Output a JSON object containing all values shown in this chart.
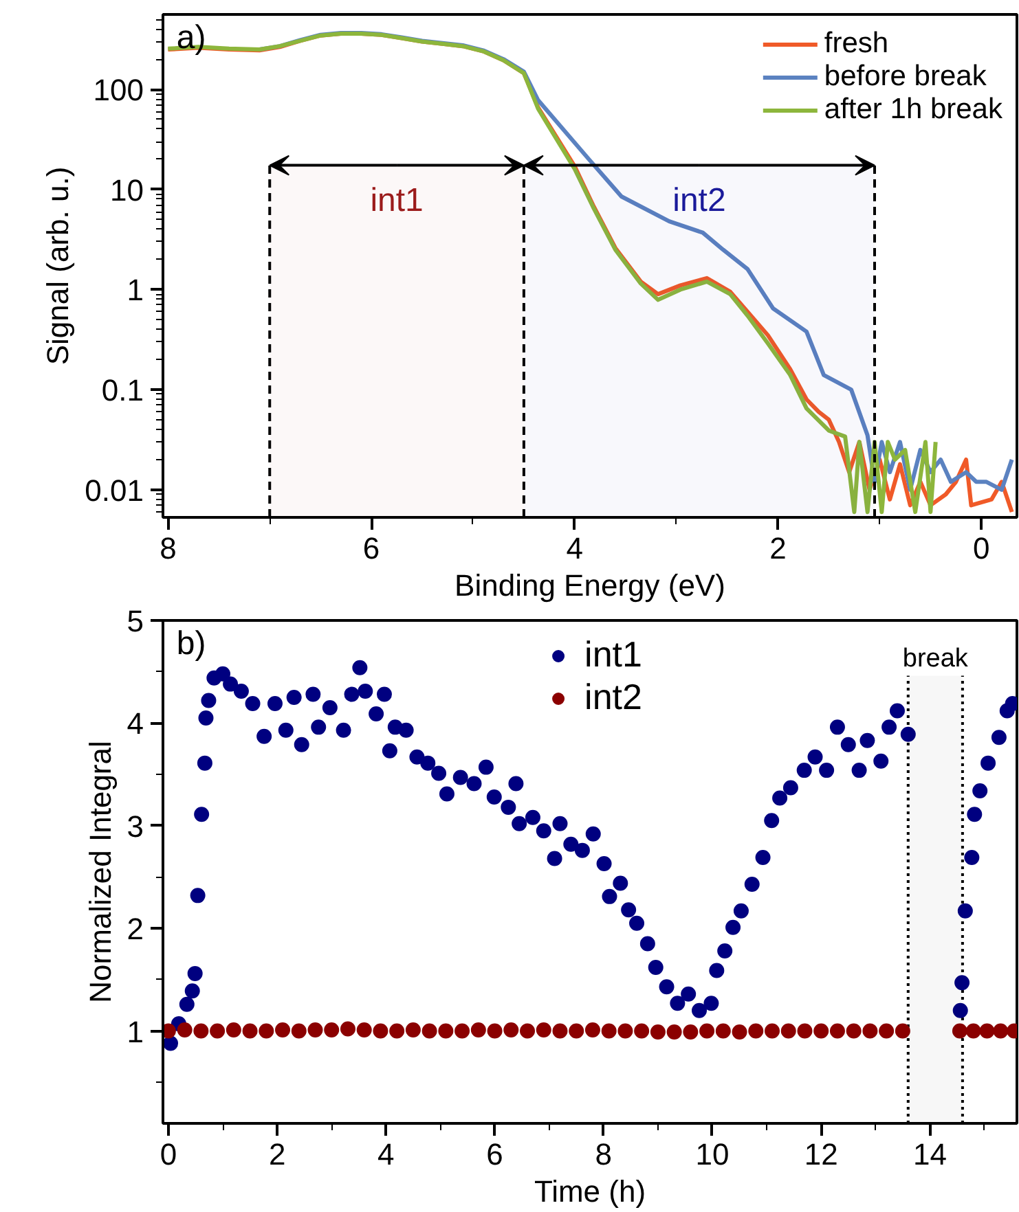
{
  "chart_data": [
    {
      "type": "line",
      "xlabel": "Binding Energy (eV)",
      "ylabel": "Signal (arb. u.)",
      "log": "y",
      "xlim": [
        8.05,
        -0.35
      ],
      "ylim": [
        0.0053,
        560
      ],
      "xticks": [
        8,
        {
          "value": 7,
          "label": null
        },
        6,
        {
          "value": 5,
          "label": null
        },
        4,
        {
          "value": 3,
          "label": null
        },
        2,
        {
          "value": 1,
          "label": null
        },
        0
      ],
      "yticks": [
        0.01,
        0.1,
        1,
        10,
        100
      ],
      "legend": "top right",
      "bands": [
        {
          "axis": "x",
          "from": 7,
          "to": 4.5,
          "label": "int1",
          "color": "#9b1b1b"
        },
        {
          "axis": "x",
          "from": 4.5,
          "to": 1.05,
          "label": "int2",
          "color": "#1a1a9a"
        }
      ],
      "annotations": [
        "a)"
      ],
      "series": [
        {
          "name": "fresh",
          "color": "#f05a28",
          "x": [
            8.0,
            7.7,
            7.4,
            7.1,
            6.9,
            6.7,
            6.5,
            6.3,
            6.1,
            5.9,
            5.7,
            5.5,
            5.3,
            5.1,
            4.9,
            4.7,
            4.5,
            4.36,
            4.0,
            3.82,
            3.6,
            3.35,
            3.18,
            2.96,
            2.7,
            2.47,
            2.3,
            2.1,
            1.88,
            1.72,
            1.6,
            1.5,
            1.4,
            1.3,
            1.2,
            1.1,
            1.0,
            0.9,
            0.8,
            0.7,
            0.6,
            0.5,
            0.35,
            0.25,
            0.15,
            0.1,
            -0.1,
            -0.2,
            -0.3
          ],
          "values": [
            250,
            260,
            250,
            245,
            265,
            305,
            345,
            360,
            360,
            350,
            325,
            300,
            285,
            270,
            240,
            195,
            145,
            66,
            17,
            7,
            2.6,
            1.2,
            0.9,
            1.1,
            1.3,
            0.95,
            0.6,
            0.35,
            0.16,
            0.08,
            0.06,
            0.05,
            0.03,
            0.015,
            0.03,
            0.01,
            0.02,
            0.008,
            0.018,
            0.007,
            0.012,
            0.007,
            0.009,
            0.012,
            0.02,
            0.007,
            0.008,
            0.012,
            0.006
          ]
        },
        {
          "name": "before break",
          "color": "#5b82c0",
          "x": [
            7.1,
            6.9,
            6.7,
            6.5,
            6.3,
            6.1,
            5.9,
            5.7,
            5.5,
            5.3,
            5.1,
            4.9,
            4.7,
            4.5,
            4.36,
            3.86,
            3.54,
            3.07,
            2.74,
            2.54,
            2.3,
            2.05,
            1.72,
            1.55,
            1.28,
            1.12,
            1.05,
            0.98,
            0.9,
            0.8,
            0.7,
            0.6,
            0.5,
            0.4,
            0.3,
            0.15,
            0.05,
            -0.05,
            -0.2,
            -0.3
          ],
          "values": [
            250,
            270,
            310,
            350,
            365,
            365,
            355,
            330,
            305,
            290,
            275,
            245,
            200,
            150,
            78,
            20,
            8.5,
            4.8,
            3.7,
            2.5,
            1.6,
            0.65,
            0.38,
            0.14,
            0.1,
            0.035,
            0.012,
            0.03,
            0.015,
            0.03,
            0.01,
            0.025,
            0.015,
            0.02,
            0.012,
            0.015,
            0.012,
            0.012,
            0.01,
            0.02
          ]
        },
        {
          "name": "after 1h break",
          "color": "#8db63c",
          "x": [
            8.0,
            7.7,
            7.4,
            7.1,
            6.9,
            6.7,
            6.5,
            6.3,
            6.1,
            5.9,
            5.7,
            5.5,
            5.3,
            5.1,
            4.9,
            4.7,
            4.5,
            4.36,
            4.0,
            3.82,
            3.6,
            3.35,
            3.18,
            2.96,
            2.7,
            2.47,
            2.3,
            2.1,
            1.88,
            1.72,
            1.5,
            1.34,
            1.25,
            1.2,
            1.12,
            1.05,
            0.98,
            0.92,
            0.85,
            0.75,
            0.65,
            0.55,
            0.5,
            0.45
          ],
          "values": [
            255,
            265,
            255,
            250,
            270,
            305,
            345,
            360,
            360,
            350,
            325,
            300,
            285,
            270,
            240,
            195,
            145,
            64,
            16,
            6.7,
            2.5,
            1.15,
            0.79,
            1.0,
            1.2,
            0.9,
            0.55,
            0.29,
            0.14,
            0.065,
            0.039,
            0.034,
            0.006,
            0.03,
            0.006,
            0.03,
            0.006,
            0.03,
            0.02,
            0.025,
            0.006,
            0.03,
            0.006,
            0.03
          ]
        }
      ]
    },
    {
      "type": "scatter",
      "xlabel": "Time (h)",
      "ylabel": "Normalized Integral",
      "marker": "circle",
      "xlim": [
        -0.1,
        15.6
      ],
      "ylim": [
        0.1,
        5
      ],
      "xticks": [
        0,
        {
          "value": 1,
          "label": null
        },
        2,
        {
          "value": 3,
          "label": null
        },
        4,
        {
          "value": 5,
          "label": null
        },
        6,
        {
          "value": 7,
          "label": null
        },
        8,
        {
          "value": 9,
          "label": null
        },
        10,
        {
          "value": 11,
          "label": null
        },
        12,
        {
          "value": 13,
          "label": null
        },
        14,
        {
          "value": 15,
          "label": null
        }
      ],
      "yticks": [
        {
          "value": 0.5,
          "label": null
        },
        1,
        {
          "value": 1.5,
          "label": null
        },
        2,
        {
          "value": 2.5,
          "label": null
        },
        3,
        {
          "value": 3.5,
          "label": null
        },
        4,
        {
          "value": 4.5,
          "label": null
        },
        5
      ],
      "legend": "top",
      "ref_lines": [
        {
          "axis": "x",
          "value": 13.6,
          "line_style": "dotted",
          "color": "#000000"
        },
        {
          "axis": "x",
          "value": 14.6,
          "line_style": "dotted",
          "color": "#000000"
        }
      ],
      "bands": [
        {
          "axis": "x",
          "from": 13.6,
          "to": 14.6,
          "label": "break",
          "color": "#000000"
        }
      ],
      "annotations": [
        "b)"
      ],
      "series": [
        {
          "name": "int1",
          "color": "#000080",
          "x": [
            0.04,
            0.19,
            0.34,
            0.44,
            0.49,
            0.54,
            0.61,
            0.67,
            0.69,
            0.74,
            0.84,
            1.0,
            1.14,
            1.34,
            1.55,
            1.76,
            1.96,
            2.16,
            2.31,
            2.45,
            2.66,
            2.76,
            2.97,
            3.22,
            3.37,
            3.52,
            3.62,
            3.82,
            3.97,
            4.07,
            4.17,
            4.37,
            4.57,
            4.77,
            4.97,
            5.12,
            5.37,
            5.62,
            5.84,
            5.99,
            6.25,
            6.39,
            6.45,
            6.7,
            6.9,
            7.1,
            7.2,
            7.4,
            7.61,
            7.81,
            8.01,
            8.11,
            8.31,
            8.46,
            8.61,
            8.81,
            8.96,
            9.16,
            9.36,
            9.56,
            9.76,
            9.98,
            10.08,
            10.23,
            10.38,
            10.53,
            10.73,
            10.93,
            11.09,
            11.24,
            11.44,
            11.69,
            11.89,
            12.1,
            12.3,
            12.5,
            12.7,
            12.85,
            13.1,
            13.25,
            13.4,
            13.6,
            14.56,
            14.59,
            14.65,
            14.77,
            14.82,
            14.92,
            15.07,
            15.27,
            15.42,
            15.52
          ],
          "values": [
            0.88,
            1.07,
            1.26,
            1.39,
            1.56,
            2.32,
            3.11,
            3.61,
            4.05,
            4.22,
            4.44,
            4.48,
            4.38,
            4.31,
            4.19,
            3.87,
            4.19,
            3.93,
            4.25,
            3.79,
            4.28,
            3.96,
            4.15,
            3.93,
            4.28,
            4.54,
            4.31,
            4.09,
            4.28,
            3.73,
            3.96,
            3.93,
            3.67,
            3.61,
            3.51,
            3.31,
            3.47,
            3.41,
            3.57,
            3.28,
            3.18,
            3.41,
            3.02,
            3.08,
            2.95,
            2.68,
            3.02,
            2.82,
            2.76,
            2.92,
            2.63,
            2.31,
            2.44,
            2.18,
            2.05,
            1.85,
            1.62,
            1.43,
            1.27,
            1.36,
            1.2,
            1.27,
            1.59,
            1.78,
            2.01,
            2.17,
            2.43,
            2.69,
            3.05,
            3.27,
            3.37,
            3.54,
            3.67,
            3.54,
            3.96,
            3.79,
            3.54,
            3.83,
            3.63,
            3.96,
            4.12,
            3.89,
            1.2,
            1.47,
            2.17,
            2.69,
            3.11,
            3.34,
            3.61,
            3.86,
            4.12,
            4.19
          ]
        },
        {
          "name": "int2",
          "color": "#8b0000",
          "x": [
            0.0,
            0.3,
            0.6,
            0.9,
            1.2,
            1.5,
            1.8,
            2.1,
            2.4,
            2.7,
            3.0,
            3.3,
            3.6,
            3.9,
            4.2,
            4.5,
            4.8,
            5.1,
            5.4,
            5.7,
            6.0,
            6.3,
            6.6,
            6.9,
            7.2,
            7.5,
            7.8,
            8.1,
            8.4,
            8.7,
            9.0,
            9.3,
            9.6,
            9.9,
            10.2,
            10.5,
            10.8,
            11.1,
            11.4,
            11.7,
            12.0,
            12.3,
            12.6,
            12.9,
            13.2,
            13.5,
            14.55,
            14.8,
            15.05,
            15.3,
            15.55
          ],
          "values": [
            1.0,
            1.01,
            1.0,
            1.0,
            1.01,
            1.0,
            1.0,
            1.01,
            1.0,
            1.01,
            1.01,
            1.02,
            1.01,
            1.0,
            1.0,
            1.01,
            1.0,
            1.0,
            1.0,
            1.01,
            1.0,
            1.01,
            1.0,
            1.01,
            1.0,
            1.0,
            1.01,
            1.0,
            1.0,
            1.0,
            0.99,
            0.99,
            0.99,
            1.0,
            1.0,
            0.99,
            1.0,
            1.0,
            1.0,
            1.0,
            1.0,
            1.0,
            1.0,
            1.0,
            1.0,
            1.0,
            1.0,
            1.0,
            1.0,
            1.0,
            1.0
          ]
        }
      ]
    }
  ]
}
